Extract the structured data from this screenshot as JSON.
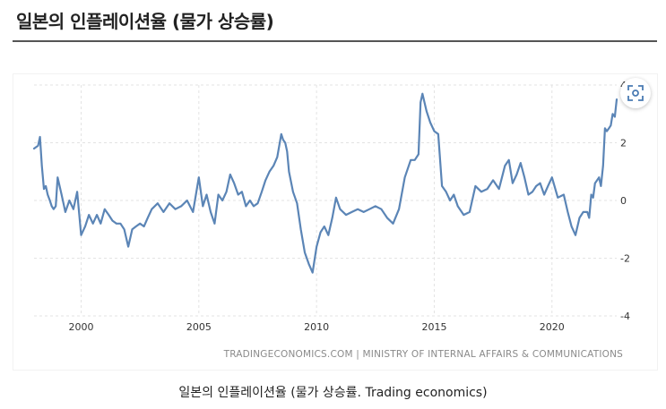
{
  "header": {
    "title": "일본의 인플레이션율 (물가 상승률)"
  },
  "caption": "일본의 인플레이션율 (물가 상승률. Trading economics)",
  "chart_data": {
    "type": "line",
    "title": "",
    "xlabel": "",
    "ylabel": "",
    "xlim": [
      1998.0,
      2022.75
    ],
    "ylim": [
      -4,
      4
    ],
    "yticks": [
      4,
      2,
      0,
      -2,
      -4
    ],
    "y_tick_labels": [
      "4",
      "2",
      "0",
      "-2",
      "-4"
    ],
    "xticks": [
      2000,
      2005,
      2010,
      2015,
      2020
    ],
    "x_tick_labels": [
      "2000",
      "2005",
      "2010",
      "2015",
      "2020"
    ],
    "grid": true,
    "line_color": "#5b85b6",
    "source_credit": "TRADINGECONOMICS.COM | MINISTRY OF INTERNAL AFFAIRS & COMMUNICATIONS",
    "series": [
      {
        "x": [
          1998.0,
          1998.17,
          1998.25,
          1998.33,
          1998.42,
          1998.5,
          1998.58,
          1998.67,
          1998.75,
          1998.83,
          1998.92,
          1999.0,
          1999.17,
          1999.33,
          1999.5,
          1999.67,
          1999.83,
          2000.0,
          2000.17,
          2000.33,
          2000.5,
          2000.67,
          2000.83,
          2001.0,
          2001.17,
          2001.33,
          2001.5,
          2001.67,
          2001.83,
          2002.0,
          2002.17,
          2002.33,
          2002.5,
          2002.67,
          2002.83,
          2003.0,
          2003.25,
          2003.5,
          2003.75,
          2004.0,
          2004.25,
          2004.5,
          2004.75,
          2005.0,
          2005.17,
          2005.33,
          2005.5,
          2005.67,
          2005.83,
          2006.0,
          2006.17,
          2006.33,
          2006.5,
          2006.67,
          2006.83,
          2007.0,
          2007.17,
          2007.33,
          2007.5,
          2007.67,
          2007.83,
          2008.0,
          2008.17,
          2008.33,
          2008.5,
          2008.58,
          2008.67,
          2008.75,
          2008.83,
          2009.0,
          2009.17,
          2009.33,
          2009.5,
          2009.67,
          2009.83,
          2010.0,
          2010.17,
          2010.33,
          2010.5,
          2010.67,
          2010.83,
          2011.0,
          2011.25,
          2011.5,
          2011.75,
          2012.0,
          2012.25,
          2012.5,
          2012.75,
          2013.0,
          2013.25,
          2013.5,
          2013.75,
          2014.0,
          2014.17,
          2014.33,
          2014.42,
          2014.5,
          2014.67,
          2014.83,
          2015.0,
          2015.17,
          2015.33,
          2015.5,
          2015.67,
          2015.83,
          2016.0,
          2016.25,
          2016.5,
          2016.75,
          2017.0,
          2017.25,
          2017.5,
          2017.75,
          2018.0,
          2018.17,
          2018.33,
          2018.5,
          2018.67,
          2018.83,
          2019.0,
          2019.17,
          2019.33,
          2019.5,
          2019.67,
          2019.83,
          2020.0,
          2020.25,
          2020.5,
          2020.67,
          2020.83,
          2021.0,
          2021.17,
          2021.33,
          2021.5,
          2021.58,
          2021.67,
          2021.75,
          2021.83,
          2022.0,
          2022.08,
          2022.17,
          2022.25,
          2022.33,
          2022.42,
          2022.5,
          2022.58,
          2022.67,
          2022.75
        ],
        "y": [
          1.8,
          1.9,
          2.2,
          1.2,
          0.4,
          0.5,
          0.2,
          0.0,
          -0.2,
          -0.3,
          -0.2,
          0.8,
          0.2,
          -0.4,
          0.0,
          -0.3,
          0.3,
          -1.2,
          -0.9,
          -0.5,
          -0.8,
          -0.5,
          -0.8,
          -0.3,
          -0.5,
          -0.7,
          -0.8,
          -0.8,
          -1.0,
          -1.6,
          -1.0,
          -0.9,
          -0.8,
          -0.9,
          -0.6,
          -0.3,
          -0.1,
          -0.4,
          -0.1,
          -0.3,
          -0.2,
          0.0,
          -0.4,
          0.8,
          -0.2,
          0.2,
          -0.4,
          -0.8,
          0.2,
          0.0,
          0.3,
          0.9,
          0.6,
          0.2,
          0.3,
          -0.2,
          0.0,
          -0.2,
          -0.1,
          0.3,
          0.7,
          1.0,
          1.2,
          1.5,
          2.3,
          2.1,
          2.0,
          1.7,
          1.0,
          0.3,
          -0.1,
          -1.0,
          -1.8,
          -2.2,
          -2.5,
          -1.6,
          -1.1,
          -0.9,
          -1.2,
          -0.6,
          0.1,
          -0.3,
          -0.5,
          -0.4,
          -0.3,
          -0.4,
          -0.3,
          -0.2,
          -0.3,
          -0.6,
          -0.8,
          -0.3,
          0.8,
          1.4,
          1.4,
          1.6,
          3.4,
          3.7,
          3.1,
          2.7,
          2.4,
          2.3,
          0.5,
          0.3,
          0.0,
          0.2,
          -0.2,
          -0.5,
          -0.4,
          0.5,
          0.3,
          0.4,
          0.7,
          0.4,
          1.2,
          1.4,
          0.6,
          0.9,
          1.3,
          0.8,
          0.2,
          0.3,
          0.5,
          0.6,
          0.2,
          0.5,
          0.8,
          0.1,
          0.2,
          -0.4,
          -0.9,
          -1.2,
          -0.6,
          -0.4,
          -0.4,
          -0.6,
          0.2,
          0.1,
          0.6,
          0.8,
          0.5,
          1.2,
          2.5,
          2.4,
          2.5,
          2.6,
          3.0,
          2.9,
          3.5
        ]
      }
    ]
  }
}
